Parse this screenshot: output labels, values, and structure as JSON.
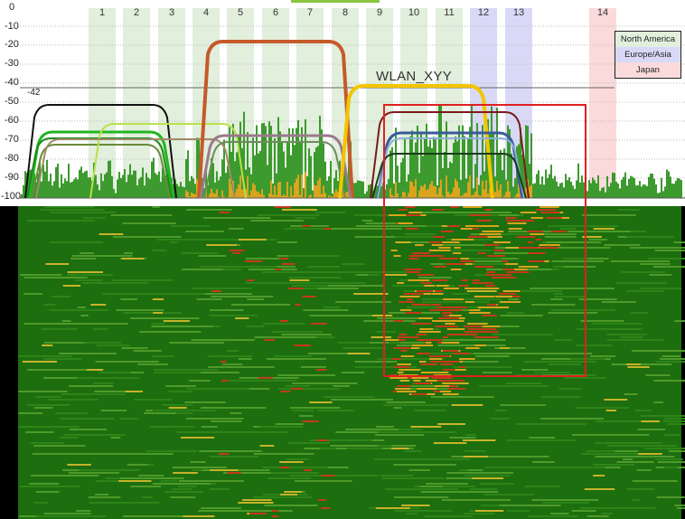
{
  "y_axis_labels": [
    "0",
    "-10",
    "-20",
    "-30",
    "-40",
    "-50",
    "-60",
    "-70",
    "-80",
    "-90",
    "-100"
  ],
  "channels": [
    "1",
    "2",
    "3",
    "4",
    "5",
    "6",
    "7",
    "8",
    "9",
    "10",
    "11",
    "12",
    "13",
    "14"
  ],
  "legend": {
    "north_america": "North America",
    "europe_asia": "Europe/Asia",
    "japan": "Japan"
  },
  "highlighted_network": "WLAN_XYY",
  "reference_value": "-42",
  "colors": {
    "north_america": "#e1efdc",
    "europe_asia": "#d9d9f7",
    "japan": "#fadada",
    "selection": "#e02020",
    "waterfall_base": "#1c6e0e"
  }
}
